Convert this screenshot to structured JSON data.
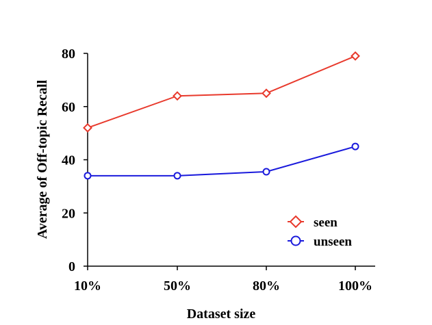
{
  "chart_data": {
    "type": "line",
    "categories": [
      "10%",
      "50%",
      "80%",
      "100%"
    ],
    "xlabel": "Dataset size",
    "ylabel": "Average of Off-topic Recall",
    "ylim": [
      0,
      80
    ],
    "yticks": [
      0,
      20,
      40,
      60,
      80
    ],
    "grid": false,
    "legend_position": "bottom-right",
    "series": [
      {
        "name": "seen",
        "values": [
          52,
          64,
          65,
          79
        ],
        "color": "#e8392c",
        "marker": "diamond"
      },
      {
        "name": "unseen",
        "values": [
          34,
          34,
          35.5,
          45
        ],
        "color": "#1a1adc",
        "marker": "circle"
      }
    ]
  }
}
